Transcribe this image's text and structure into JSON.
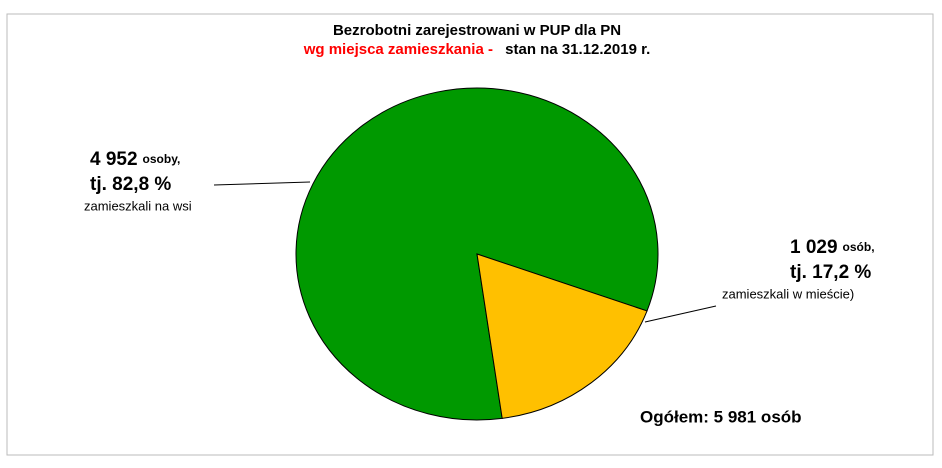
{
  "chart_data": {
    "type": "pie",
    "title": "Bezrobotni zarejestrowani w PUP dla PN",
    "subtitle_red": "wg miejsca zamieszkania  -",
    "subtitle": "stan na 31.12.2019 r.",
    "categories": [
      "zamieszkali na wsi",
      "zamieszkali w mieście)"
    ],
    "values": [
      4952,
      1029
    ],
    "value_labels": [
      "4 952",
      "1 029"
    ],
    "unit_labels": [
      "osoby,",
      "osób,"
    ],
    "percent_labels": [
      "tj. 82,8 %",
      "tj. 17,2 %"
    ],
    "colors": [
      "#009900",
      "#ffc000"
    ],
    "annotation": "Ogółem: 5 981 osób"
  }
}
